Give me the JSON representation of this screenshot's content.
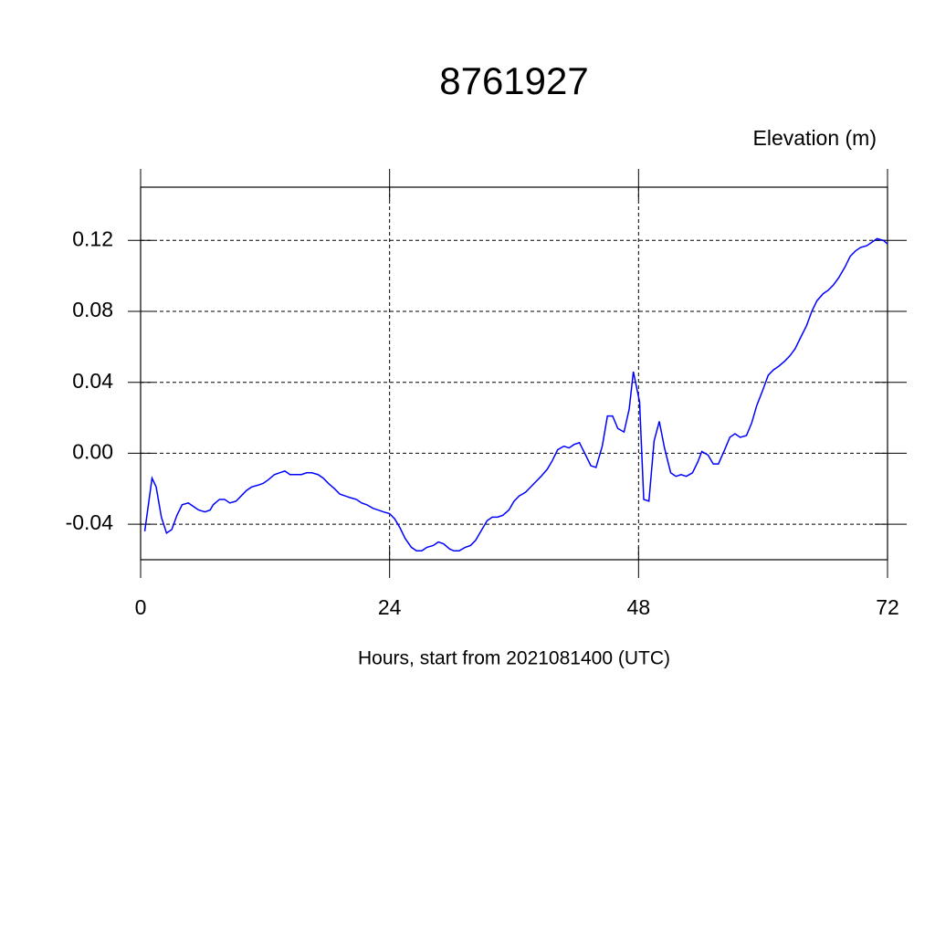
{
  "chart_data": {
    "type": "line",
    "title": "8761927",
    "subtitle": "Elevation (m)",
    "x_label": "Hours, start from 2021081400 (UTC)",
    "color": "#0000ff",
    "grid": true,
    "xlim": [
      0,
      72
    ],
    "xticks": [
      0,
      24,
      48,
      72
    ],
    "ylim": [
      -0.06,
      0.15
    ],
    "yticks": [
      -0.04,
      {
        "value": 0,
        "label": "0.00"
      },
      0.04,
      0.08,
      0.12
    ],
    "x": [
      0.4,
      1.1,
      1.5,
      2.0,
      2.5,
      3.0,
      3.5,
      4.0,
      4.6,
      5.1,
      5.6,
      6.2,
      6.7,
      7.0,
      7.6,
      8.1,
      8.6,
      9.2,
      9.7,
      10.2,
      10.7,
      11.3,
      11.8,
      12.3,
      12.9,
      13.4,
      13.9,
      14.4,
      15.0,
      15.5,
      16.0,
      16.5,
      17.1,
      17.6,
      18.1,
      18.7,
      19.2,
      19.7,
      20.2,
      20.8,
      21.3,
      21.8,
      22.4,
      22.9,
      23.4,
      24.0,
      24.5,
      25.0,
      25.5,
      26.1,
      26.6,
      27.1,
      27.6,
      28.2,
      28.7,
      29.2,
      29.8,
      30.2,
      30.7,
      31.3,
      31.8,
      32.3,
      32.8,
      33.4,
      33.9,
      34.4,
      34.9,
      35.5,
      36.0,
      36.5,
      37.1,
      37.6,
      38.1,
      38.6,
      39.2,
      39.7,
      40.2,
      40.8,
      41.3,
      41.8,
      42.3,
      42.9,
      43.4,
      43.9,
      44.5,
      45.0,
      45.5,
      46.0,
      46.6,
      47.1,
      47.5,
      48.1,
      48.5,
      49.0,
      49.5,
      50.0,
      50.5,
      51.1,
      51.6,
      52.1,
      52.6,
      53.2,
      53.7,
      54.1,
      54.7,
      55.2,
      55.7,
      56.3,
      56.8,
      57.3,
      57.8,
      58.4,
      58.9,
      59.4,
      60.0,
      60.5,
      61.0,
      61.5,
      62.1,
      62.6,
      63.1,
      63.6,
      64.2,
      64.7,
      65.2,
      65.8,
      66.3,
      66.8,
      67.3,
      67.9,
      68.4,
      68.9,
      69.4,
      70.0,
      70.5,
      71.0,
      71.6,
      72.0
    ],
    "values": [
      -0.044,
      -0.014,
      -0.019,
      -0.036,
      -0.045,
      -0.043,
      -0.035,
      -0.029,
      -0.028,
      -0.03,
      -0.032,
      -0.033,
      -0.032,
      -0.029,
      -0.026,
      -0.026,
      -0.028,
      -0.027,
      -0.024,
      -0.021,
      -0.019,
      -0.018,
      -0.017,
      -0.015,
      -0.012,
      -0.011,
      -0.01,
      -0.012,
      -0.012,
      -0.012,
      -0.011,
      -0.011,
      -0.012,
      -0.014,
      -0.017,
      -0.02,
      -0.023,
      -0.024,
      -0.025,
      -0.026,
      -0.028,
      -0.029,
      -0.031,
      -0.032,
      -0.033,
      -0.034,
      -0.037,
      -0.042,
      -0.048,
      -0.053,
      -0.055,
      -0.055,
      -0.053,
      -0.052,
      -0.05,
      -0.051,
      -0.054,
      -0.055,
      -0.055,
      -0.053,
      -0.052,
      -0.049,
      -0.044,
      -0.038,
      -0.036,
      -0.036,
      -0.035,
      -0.032,
      -0.027,
      -0.024,
      -0.022,
      -0.019,
      -0.016,
      -0.013,
      -0.009,
      -0.004,
      0.002,
      0.004,
      0.003,
      0.005,
      0.006,
      -0.001,
      -0.007,
      -0.008,
      0.004,
      0.021,
      0.021,
      0.014,
      0.012,
      0.025,
      0.046,
      0.029,
      -0.026,
      -0.027,
      0.007,
      0.018,
      0.003,
      -0.011,
      -0.013,
      -0.012,
      -0.013,
      -0.011,
      -0.005,
      0.001,
      -0.001,
      -0.006,
      -0.006,
      0.002,
      0.009,
      0.011,
      0.009,
      0.01,
      0.017,
      0.027,
      0.036,
      0.044,
      0.047,
      0.049,
      0.052,
      0.055,
      0.059,
      0.065,
      0.072,
      0.08,
      0.086,
      0.09,
      0.092,
      0.095,
      0.099,
      0.105,
      0.111,
      0.114,
      0.116,
      0.117,
      0.119,
      0.121,
      0.12,
      0.118
    ]
  }
}
